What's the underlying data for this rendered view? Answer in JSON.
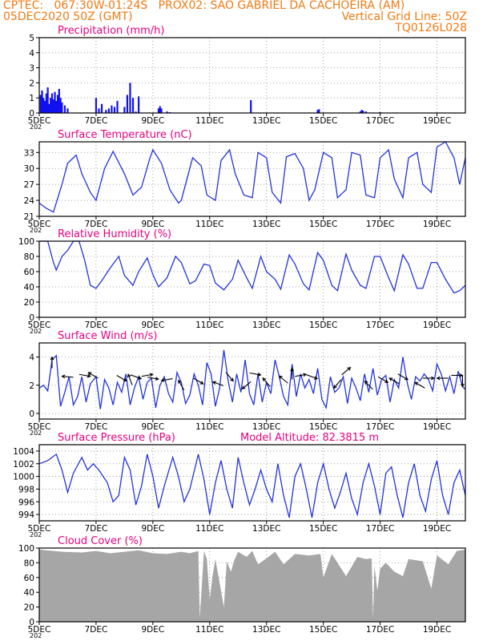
{
  "header": {
    "line1": "CPTEC:   067:30W-01:24S   PROX02: SAO GABRIEL DA CACHOEIRA (AM)",
    "line2_left": "05DEC2020 50Z (GMT)",
    "line2_right": "Vertical Grid Line: 50Z",
    "line3_right": "TQ0126L028"
  },
  "colors": {
    "header": "#f07a12",
    "title": "#e6007e",
    "line": "#2233dd",
    "bar": "#1111ee",
    "cloud": "#a6a6a6",
    "arrow": "#000000",
    "grid": "#888888"
  },
  "x_axis": {
    "ticks": [
      "5DEC",
      "7DEC",
      "9DEC",
      "11DEC",
      "13DEC",
      "15DEC",
      "17DEC",
      "19DEC"
    ],
    "tick_days": [
      0,
      2,
      4,
      6,
      8,
      10,
      12,
      14
    ],
    "range_days": [
      0,
      15
    ],
    "stub_label": "202"
  },
  "chart_data": [
    {
      "id": "precip",
      "type": "bar",
      "title": "Precipitation (mm/h)",
      "ylim": [
        0,
        5
      ],
      "yticks": [
        "0",
        "1",
        "2",
        "3",
        "4",
        "5"
      ],
      "grid": true,
      "x_days": [
        0.05,
        0.1,
        0.15,
        0.2,
        0.25,
        0.3,
        0.35,
        0.4,
        0.45,
        0.5,
        0.55,
        0.6,
        0.65,
        0.7,
        0.75,
        0.8,
        0.9,
        1.0,
        2.0,
        2.1,
        2.2,
        2.35,
        2.45,
        2.55,
        2.65,
        2.75,
        3.0,
        3.1,
        3.2,
        3.3,
        3.4,
        3.5,
        4.2,
        4.25,
        4.3,
        4.5,
        4.6,
        7.45,
        9.8,
        9.85,
        11.3,
        11.35,
        11.4,
        11.5,
        12.0
      ],
      "values": [
        1.2,
        1.5,
        1.0,
        0.8,
        1.3,
        1.7,
        0.6,
        1.0,
        1.3,
        0.9,
        1.4,
        0.8,
        1.2,
        1.6,
        1.0,
        0.7,
        0.5,
        0.3,
        1.0,
        0.3,
        0.6,
        0.2,
        0.3,
        0.5,
        0.4,
        0.8,
        0.4,
        1.2,
        2.0,
        1.0,
        0.1,
        1.1,
        0.3,
        0.45,
        0.3,
        0.1,
        0.05,
        0.85,
        0.2,
        0.25,
        0.1,
        0.2,
        0.15,
        0.1,
        0.05
      ]
    },
    {
      "id": "temp",
      "type": "line",
      "title": "Surface Temperature (nC)",
      "ylim": [
        21,
        35
      ],
      "yticks": [
        "21",
        "24",
        "27",
        "30",
        "33"
      ],
      "grid": true,
      "x_days": [
        0,
        0.25,
        0.5,
        0.8,
        1.0,
        1.3,
        1.5,
        1.8,
        2.0,
        2.3,
        2.6,
        3.0,
        3.3,
        3.6,
        3.9,
        4.0,
        4.3,
        4.6,
        4.9,
        5.0,
        5.4,
        5.7,
        5.9,
        6.2,
        6.4,
        6.7,
        6.9,
        7.2,
        7.5,
        7.7,
        8.0,
        8.2,
        8.5,
        8.7,
        9.0,
        9.3,
        9.5,
        9.7,
        10.0,
        10.3,
        10.5,
        10.8,
        11.0,
        11.3,
        11.5,
        11.8,
        12.0,
        12.3,
        12.5,
        12.8,
        13.0,
        13.3,
        13.5,
        13.8,
        14.0,
        14.3,
        14.6,
        14.8,
        15.0
      ],
      "values": [
        23.5,
        22.5,
        21.8,
        27,
        31,
        32.5,
        29,
        25.5,
        24,
        30,
        33.2,
        29,
        25,
        26.5,
        32,
        33.5,
        31,
        26,
        23.5,
        24,
        32,
        30.5,
        25,
        24,
        31.5,
        33.5,
        29,
        25,
        24.5,
        33,
        32,
        25.5,
        23.5,
        32.2,
        32.8,
        30,
        24,
        26,
        33,
        32,
        24.5,
        26,
        33,
        32.5,
        25,
        24.5,
        32,
        33.5,
        28,
        24.5,
        32,
        33,
        27,
        25.5,
        34,
        35,
        32,
        27,
        32
      ]
    },
    {
      "id": "rh",
      "type": "line",
      "title": "Relative Humidity (%)",
      "ylim": [
        0,
        100
      ],
      "yticks": [
        "0",
        "20",
        "40",
        "60",
        "80",
        "100"
      ],
      "grid": true,
      "x_days": [
        0,
        0.3,
        0.5,
        0.6,
        0.8,
        1.0,
        1.2,
        1.4,
        1.6,
        1.8,
        2.0,
        2.2,
        2.5,
        2.8,
        3.0,
        3.3,
        3.5,
        3.8,
        4.0,
        4.2,
        4.5,
        4.8,
        5.0,
        5.3,
        5.5,
        5.8,
        6.0,
        6.2,
        6.5,
        6.8,
        7.0,
        7.3,
        7.5,
        7.8,
        8.0,
        8.3,
        8.5,
        8.8,
        9.0,
        9.3,
        9.5,
        9.8,
        10.0,
        10.3,
        10.5,
        10.8,
        11.0,
        11.3,
        11.5,
        11.8,
        12.0,
        12.3,
        12.5,
        12.8,
        13.0,
        13.3,
        13.5,
        13.8,
        14.0,
        14.3,
        14.6,
        14.8,
        15.0
      ],
      "values": [
        100,
        100,
        72,
        62,
        80,
        88,
        100,
        100,
        75,
        42,
        38,
        48,
        65,
        80,
        55,
        42,
        60,
        78,
        56,
        40,
        52,
        80,
        72,
        44,
        48,
        70,
        68,
        45,
        36,
        50,
        75,
        52,
        38,
        80,
        60,
        50,
        37,
        82,
        70,
        44,
        36,
        85,
        75,
        42,
        35,
        83,
        62,
        42,
        38,
        80,
        80,
        52,
        35,
        82,
        70,
        38,
        38,
        72,
        72,
        50,
        32,
        35,
        42
      ]
    },
    {
      "id": "wind",
      "type": "line",
      "title": "Surface Wind (m/s)",
      "ylim": [
        0,
        5
      ],
      "yticks": [
        "0",
        "2",
        "4"
      ],
      "grid": true,
      "x_days": [
        0,
        0.15,
        0.3,
        0.45,
        0.6,
        0.75,
        0.9,
        1.05,
        1.2,
        1.35,
        1.5,
        1.65,
        1.8,
        2.0,
        2.15,
        2.3,
        2.45,
        2.6,
        2.75,
        2.9,
        3.05,
        3.2,
        3.35,
        3.5,
        3.65,
        3.8,
        3.95,
        4.1,
        4.25,
        4.4,
        4.55,
        4.7,
        4.85,
        5.0,
        5.15,
        5.3,
        5.45,
        5.6,
        5.75,
        5.9,
        6.05,
        6.2,
        6.35,
        6.5,
        6.65,
        6.8,
        6.95,
        7.1,
        7.25,
        7.4,
        7.55,
        7.7,
        7.85,
        8.0,
        8.15,
        8.3,
        8.45,
        8.6,
        8.75,
        8.9,
        9.05,
        9.2,
        9.35,
        9.5,
        9.65,
        9.8,
        9.95,
        10.1,
        10.25,
        10.4,
        10.55,
        10.7,
        10.85,
        11.0,
        11.15,
        11.3,
        11.45,
        11.6,
        11.75,
        11.9,
        12.05,
        12.2,
        12.35,
        12.5,
        12.65,
        12.8,
        12.95,
        13.1,
        13.25,
        13.4,
        13.55,
        13.7,
        13.85,
        14.0,
        14.15,
        14.3,
        14.45,
        14.6,
        14.75,
        14.9,
        15.0
      ],
      "values": [
        1.8,
        2.0,
        1.6,
        3.8,
        4.1,
        0.5,
        1.5,
        2.6,
        0.6,
        1.2,
        2.6,
        0.8,
        2.1,
        2.6,
        0.3,
        2.4,
        1.8,
        0.6,
        2.2,
        1.5,
        2.8,
        0.6,
        1.8,
        2.6,
        1.0,
        2.2,
        2.5,
        0.4,
        2.0,
        2.6,
        1.4,
        0.8,
        2.9,
        2.2,
        0.7,
        1.3,
        2.8,
        2.0,
        0.6,
        3.6,
        2.8,
        0.5,
        1.8,
        4.5,
        2.3,
        0.8,
        2.8,
        1.5,
        3.8,
        1.4,
        0.6,
        2.8,
        0.8,
        2.2,
        1.4,
        3.8,
        2.6,
        1.2,
        0.6,
        3.5,
        1.2,
        2.8,
        1.8,
        2.4,
        1.4,
        3.2,
        1.0,
        0.4,
        2.6,
        1.5,
        1.8,
        2.6,
        0.7,
        2.5,
        1.8,
        0.9,
        2.8,
        1.5,
        3.2,
        1.3,
        2.4,
        2.7,
        0.8,
        2.4,
        1.8,
        4.0,
        2.2,
        1.0,
        2.6,
        2.3,
        2.8,
        2.4,
        1.6,
        3.5,
        2.8,
        1.6,
        2.6,
        1.4,
        3.0,
        1.9,
        1.7
      ]
    },
    {
      "id": "press",
      "type": "line",
      "title": "Surface Pressure (hPa)",
      "subtitle": "Model Altitude: 82.3815 m",
      "ylim": [
        993,
        1005
      ],
      "yticks": [
        "994",
        "996",
        "998",
        "1000",
        "1002",
        "1004"
      ],
      "grid": true,
      "x_days": [
        0,
        0.3,
        0.6,
        0.8,
        1.0,
        1.2,
        1.5,
        1.7,
        1.9,
        2.1,
        2.4,
        2.6,
        2.8,
        3.0,
        3.2,
        3.4,
        3.6,
        3.8,
        4.0,
        4.2,
        4.4,
        4.7,
        4.9,
        5.1,
        5.3,
        5.6,
        5.8,
        6.0,
        6.2,
        6.4,
        6.6,
        6.8,
        7.0,
        7.2,
        7.4,
        7.6,
        7.8,
        8.0,
        8.2,
        8.4,
        8.6,
        8.8,
        9.0,
        9.2,
        9.4,
        9.6,
        9.8,
        10.0,
        10.2,
        10.4,
        10.6,
        10.8,
        11.0,
        11.2,
        11.4,
        11.6,
        11.8,
        12.0,
        12.2,
        12.4,
        12.6,
        12.8,
        13.0,
        13.2,
        13.4,
        13.6,
        13.8,
        14.0,
        14.2,
        14.4,
        14.6,
        14.8,
        15.0
      ],
      "values": [
        1002,
        1002.5,
        1003.5,
        1001,
        997.5,
        1000.5,
        1003,
        1001,
        1002,
        1001,
        999,
        996,
        997,
        1003,
        1001,
        995.5,
        998.5,
        1003.5,
        1000,
        995,
        998.5,
        1003,
        1000,
        996,
        998,
        1003.5,
        999.5,
        994,
        999,
        1002.5,
        998,
        995,
        1003,
        999,
        995.5,
        998,
        1001,
        998,
        996,
        1002,
        997,
        993.5,
        1000,
        1002,
        998,
        993.5,
        999,
        1002,
        998,
        995,
        997.5,
        1000.5,
        996.5,
        994,
        999,
        1002,
        998.5,
        994,
        1000.5,
        1001.5,
        997,
        993.5,
        999,
        1002,
        997,
        994.5,
        999.5,
        1002.5,
        997,
        994,
        999,
        1001,
        997
      ]
    },
    {
      "id": "cloud",
      "type": "area",
      "title": "Cloud Cover (%)",
      "ylim": [
        0,
        100
      ],
      "yticks": [
        "0",
        "20",
        "40",
        "60",
        "80",
        "100"
      ],
      "grid": true,
      "x_days": [
        0,
        0.8,
        1.5,
        2.0,
        2.5,
        3.0,
        3.5,
        4.0,
        4.5,
        5.0,
        5.3,
        5.6,
        5.65,
        5.8,
        5.9,
        6.0,
        6.1,
        6.2,
        6.5,
        6.6,
        6.75,
        6.85,
        7.0,
        7.3,
        7.5,
        7.7,
        8.0,
        8.3,
        8.6,
        9.0,
        9.5,
        9.9,
        10.0,
        10.3,
        10.8,
        11.2,
        11.5,
        11.7,
        11.75,
        11.8,
        11.9,
        12.0,
        12.2,
        12.5,
        12.8,
        13.0,
        13.5,
        13.8,
        14.0,
        14.4,
        14.7,
        15.0
      ],
      "values": [
        98,
        95,
        94,
        96,
        93,
        95,
        97,
        93,
        92,
        95,
        93,
        96,
        5,
        96,
        85,
        30,
        62,
        85,
        20,
        82,
        68,
        82,
        95,
        88,
        96,
        78,
        86,
        95,
        78,
        92,
        90,
        92,
        60,
        92,
        62,
        88,
        85,
        86,
        5,
        76,
        42,
        72,
        80,
        68,
        62,
        85,
        82,
        45,
        90,
        78,
        96,
        98
      ]
    }
  ],
  "wind_arrows": [
    {
      "day": 0.45,
      "level": 3.6,
      "dir_deg": 0
    },
    {
      "day": 1.0,
      "level": 2.6,
      "dir_deg": -85
    },
    {
      "day": 1.6,
      "level": 2.7,
      "dir_deg": 100
    },
    {
      "day": 1.9,
      "level": 2.7,
      "dir_deg": -60
    },
    {
      "day": 2.9,
      "level": 2.5,
      "dir_deg": 120
    },
    {
      "day": 3.2,
      "level": 2.4,
      "dir_deg": -20
    },
    {
      "day": 3.4,
      "level": 2.6,
      "dir_deg": 110
    },
    {
      "day": 3.8,
      "level": 2.7,
      "dir_deg": 80
    },
    {
      "day": 4.0,
      "level": 2.5,
      "dir_deg": 100
    },
    {
      "day": 4.5,
      "level": 2.4,
      "dir_deg": -100
    },
    {
      "day": 5.0,
      "level": 2.0,
      "dir_deg": -30
    },
    {
      "day": 5.6,
      "level": 2.3,
      "dir_deg": 120
    },
    {
      "day": 6.3,
      "level": 2.1,
      "dir_deg": -70
    },
    {
      "day": 6.7,
      "level": 2.6,
      "dir_deg": 140
    },
    {
      "day": 7.3,
      "level": 2.0,
      "dir_deg": -130
    },
    {
      "day": 7.6,
      "level": 2.8,
      "dir_deg": 100
    },
    {
      "day": 8.0,
      "level": 2.2,
      "dir_deg": -40
    },
    {
      "day": 8.6,
      "level": 2.4,
      "dir_deg": -50
    },
    {
      "day": 8.9,
      "level": 2.8,
      "dir_deg": 0
    },
    {
      "day": 9.2,
      "level": 2.7,
      "dir_deg": 80
    },
    {
      "day": 9.6,
      "level": 2.6,
      "dir_deg": 110
    },
    {
      "day": 10.5,
      "level": 2.1,
      "dir_deg": -140
    },
    {
      "day": 10.8,
      "level": 3.0,
      "dir_deg": 50
    },
    {
      "day": 11.6,
      "level": 2.0,
      "dir_deg": -45
    },
    {
      "day": 12.1,
      "level": 2.4,
      "dir_deg": 120
    },
    {
      "day": 12.5,
      "level": 2.3,
      "dir_deg": -60
    },
    {
      "day": 12.8,
      "level": 2.6,
      "dir_deg": 120
    },
    {
      "day": 13.4,
      "level": 2.0,
      "dir_deg": -60
    },
    {
      "day": 13.7,
      "level": 2.5,
      "dir_deg": 90
    },
    {
      "day": 14.2,
      "level": 2.5,
      "dir_deg": -90
    },
    {
      "day": 14.7,
      "level": 2.7,
      "dir_deg": 90
    },
    {
      "day": 14.9,
      "level": 2.3,
      "dir_deg": 180
    }
  ]
}
